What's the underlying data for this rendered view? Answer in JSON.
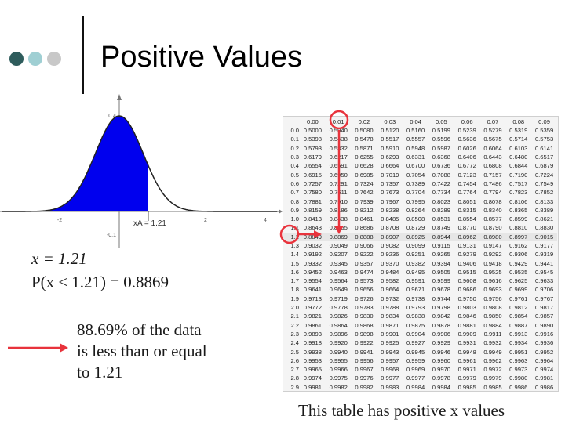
{
  "slide": {
    "title": "Positive Values",
    "x_value": "x = 1.21",
    "probability": "P(x ≤ 1.21) = 0.8869",
    "note_line1": "88.69% of the data",
    "note_line2": "is less than or equal",
    "note_line3": "to 1.21",
    "caption": "This table has positive x values",
    "dot_colors": [
      "#2e5c5c",
      "#9fcfd3",
      "#c8c8c8"
    ],
    "accent_color": "#e8333c",
    "curve_fill": "#0000ee"
  },
  "graph": {
    "y_top_label": "0.4",
    "y_neg_label": "-0.1",
    "x_neg2_label": "-2",
    "x_2_label": "2",
    "x_4_label": "4",
    "xa_label": "xA = 1.21"
  },
  "table": {
    "headers": [
      "0.00",
      "0.01",
      "0.02",
      "0.03",
      "0.04",
      "0.05",
      "0.06",
      "0.07",
      "0.08",
      "0.09"
    ],
    "rows": [
      {
        "z": "0.0",
        "v": [
          "0.5000",
          "0.5040",
          "0.5080",
          "0.5120",
          "0.5160",
          "0.5199",
          "0.5239",
          "0.5279",
          "0.5319",
          "0.5359"
        ]
      },
      {
        "z": "0.1",
        "v": [
          "0.5398",
          "0.5438",
          "0.5478",
          "0.5517",
          "0.5557",
          "0.5596",
          "0.5636",
          "0.5675",
          "0.5714",
          "0.5753"
        ]
      },
      {
        "z": "0.2",
        "v": [
          "0.5793",
          "0.5832",
          "0.5871",
          "0.5910",
          "0.5948",
          "0.5987",
          "0.6026",
          "0.6064",
          "0.6103",
          "0.6141"
        ]
      },
      {
        "z": "0.3",
        "v": [
          "0.6179",
          "0.6217",
          "0.6255",
          "0.6293",
          "0.6331",
          "0.6368",
          "0.6406",
          "0.6443",
          "0.6480",
          "0.6517"
        ]
      },
      {
        "z": "0.4",
        "v": [
          "0.6554",
          "0.6591",
          "0.6628",
          "0.6664",
          "0.6700",
          "0.6736",
          "0.6772",
          "0.6808",
          "0.6844",
          "0.6879"
        ]
      },
      {
        "z": "0.5",
        "v": [
          "0.6915",
          "0.6950",
          "0.6985",
          "0.7019",
          "0.7054",
          "0.7088",
          "0.7123",
          "0.7157",
          "0.7190",
          "0.7224"
        ]
      },
      {
        "z": "0.6",
        "v": [
          "0.7257",
          "0.7291",
          "0.7324",
          "0.7357",
          "0.7389",
          "0.7422",
          "0.7454",
          "0.7486",
          "0.7517",
          "0.7549"
        ]
      },
      {
        "z": "0.7",
        "v": [
          "0.7580",
          "0.7611",
          "0.7642",
          "0.7673",
          "0.7704",
          "0.7734",
          "0.7764",
          "0.7794",
          "0.7823",
          "0.7852"
        ]
      },
      {
        "z": "0.8",
        "v": [
          "0.7881",
          "0.7910",
          "0.7939",
          "0.7967",
          "0.7995",
          "0.8023",
          "0.8051",
          "0.8078",
          "0.8106",
          "0.8133"
        ]
      },
      {
        "z": "0.9",
        "v": [
          "0.8159",
          "0.8186",
          "0.8212",
          "0.8238",
          "0.8264",
          "0.8289",
          "0.8315",
          "0.8340",
          "0.8365",
          "0.8389"
        ]
      },
      {
        "z": "1.0",
        "v": [
          "0.8413",
          "0.8438",
          "0.8461",
          "0.8485",
          "0.8508",
          "0.8531",
          "0.8554",
          "0.8577",
          "0.8599",
          "0.8621"
        ]
      },
      {
        "z": "1.1",
        "v": [
          "0.8643",
          "0.8665",
          "0.8686",
          "0.8708",
          "0.8729",
          "0.8749",
          "0.8770",
          "0.8790",
          "0.8810",
          "0.8830"
        ]
      },
      {
        "z": "1.2",
        "v": [
          "0.8849",
          "0.8869",
          "0.8888",
          "0.8907",
          "0.8925",
          "0.8944",
          "0.8962",
          "0.8980",
          "0.8997",
          "0.9015"
        ]
      },
      {
        "z": "1.3",
        "v": [
          "0.9032",
          "0.9049",
          "0.9066",
          "0.9082",
          "0.9099",
          "0.9115",
          "0.9131",
          "0.9147",
          "0.9162",
          "0.9177"
        ]
      },
      {
        "z": "1.4",
        "v": [
          "0.9192",
          "0.9207",
          "0.9222",
          "0.9236",
          "0.9251",
          "0.9265",
          "0.9279",
          "0.9292",
          "0.9306",
          "0.9319"
        ]
      },
      {
        "z": "1.5",
        "v": [
          "0.9332",
          "0.9345",
          "0.9357",
          "0.9370",
          "0.9382",
          "0.9394",
          "0.9406",
          "0.9418",
          "0.9429",
          "0.9441"
        ]
      },
      {
        "z": "1.6",
        "v": [
          "0.9452",
          "0.9463",
          "0.9474",
          "0.9484",
          "0.9495",
          "0.9505",
          "0.9515",
          "0.9525",
          "0.9535",
          "0.9545"
        ]
      },
      {
        "z": "1.7",
        "v": [
          "0.9554",
          "0.9564",
          "0.9573",
          "0.9582",
          "0.9591",
          "0.9599",
          "0.9608",
          "0.9616",
          "0.9625",
          "0.9633"
        ]
      },
      {
        "z": "1.8",
        "v": [
          "0.9641",
          "0.9649",
          "0.9656",
          "0.9664",
          "0.9671",
          "0.9678",
          "0.9686",
          "0.9693",
          "0.9699",
          "0.9706"
        ]
      },
      {
        "z": "1.9",
        "v": [
          "0.9713",
          "0.9719",
          "0.9726",
          "0.9732",
          "0.9738",
          "0.9744",
          "0.9750",
          "0.9756",
          "0.9761",
          "0.9767"
        ]
      },
      {
        "z": "2.0",
        "v": [
          "0.9772",
          "0.9778",
          "0.9783",
          "0.9788",
          "0.9793",
          "0.9798",
          "0.9803",
          "0.9808",
          "0.9812",
          "0.9817"
        ]
      },
      {
        "z": "2.1",
        "v": [
          "0.9821",
          "0.9826",
          "0.9830",
          "0.9834",
          "0.9838",
          "0.9842",
          "0.9846",
          "0.9850",
          "0.9854",
          "0.9857"
        ]
      },
      {
        "z": "2.2",
        "v": [
          "0.9861",
          "0.9864",
          "0.9868",
          "0.9871",
          "0.9875",
          "0.9878",
          "0.9881",
          "0.9884",
          "0.9887",
          "0.9890"
        ]
      },
      {
        "z": "2.3",
        "v": [
          "0.9893",
          "0.9896",
          "0.9898",
          "0.9901",
          "0.9904",
          "0.9906",
          "0.9909",
          "0.9911",
          "0.9913",
          "0.9916"
        ]
      },
      {
        "z": "2.4",
        "v": [
          "0.9918",
          "0.9920",
          "0.9922",
          "0.9925",
          "0.9927",
          "0.9929",
          "0.9931",
          "0.9932",
          "0.9934",
          "0.9936"
        ]
      },
      {
        "z": "2.5",
        "v": [
          "0.9938",
          "0.9940",
          "0.9941",
          "0.9943",
          "0.9945",
          "0.9946",
          "0.9948",
          "0.9949",
          "0.9951",
          "0.9952"
        ]
      },
      {
        "z": "2.6",
        "v": [
          "0.9953",
          "0.9955",
          "0.9956",
          "0.9957",
          "0.9959",
          "0.9960",
          "0.9961",
          "0.9962",
          "0.9963",
          "0.9964"
        ]
      },
      {
        "z": "2.7",
        "v": [
          "0.9965",
          "0.9966",
          "0.9967",
          "0.9968",
          "0.9969",
          "0.9970",
          "0.9971",
          "0.9972",
          "0.9973",
          "0.9974"
        ]
      },
      {
        "z": "2.8",
        "v": [
          "0.9974",
          "0.9975",
          "0.9976",
          "0.9977",
          "0.9977",
          "0.9978",
          "0.9979",
          "0.9979",
          "0.9980",
          "0.9981"
        ]
      },
      {
        "z": "2.9",
        "v": [
          "0.9981",
          "0.9982",
          "0.9982",
          "0.9983",
          "0.9984",
          "0.9984",
          "0.9985",
          "0.9985",
          "0.9986",
          "0.9986"
        ]
      }
    ]
  }
}
